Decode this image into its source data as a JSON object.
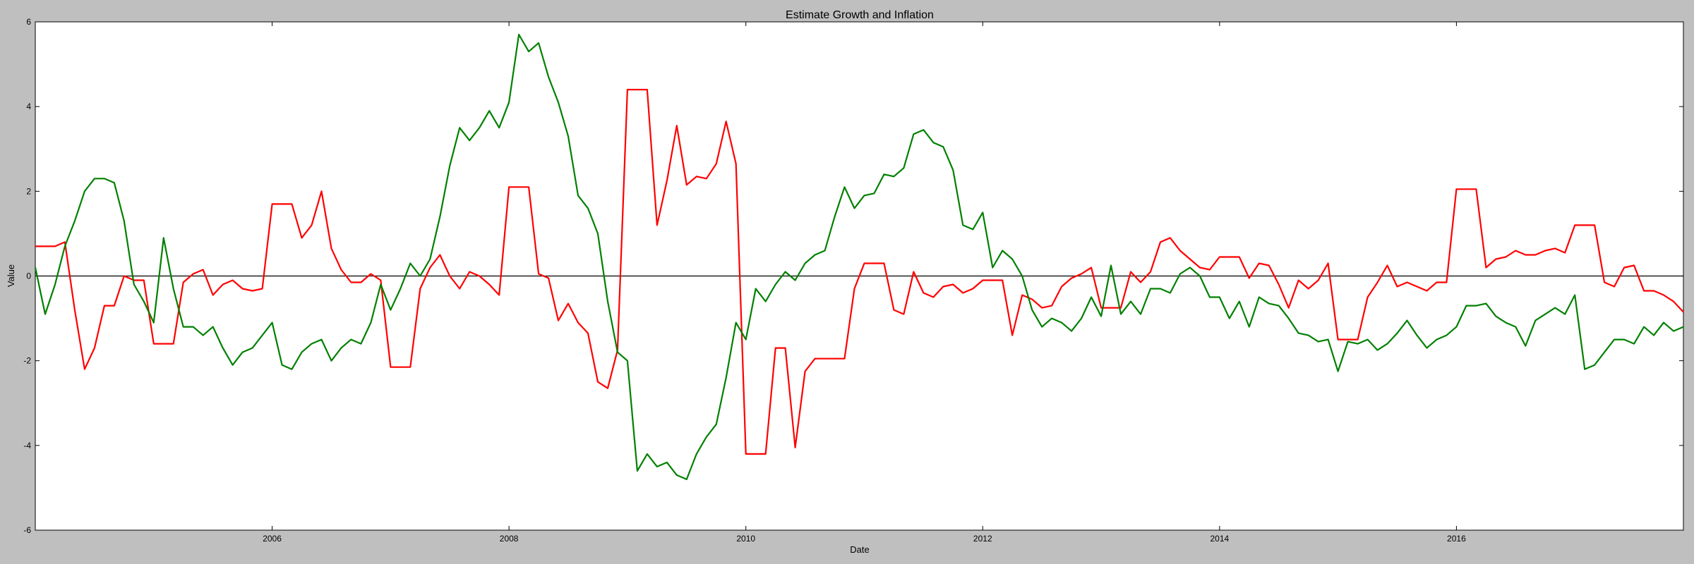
{
  "chart_data": {
    "type": "line",
    "title": "Estimate Growth and Inflation",
    "xlabel": "Date",
    "ylabel": "Value",
    "ylim": [
      -6,
      6
    ],
    "xlim": [
      "2004-01-01",
      "2017-12-01"
    ],
    "x_ticks": [
      "2006",
      "2008",
      "2010",
      "2012",
      "2014",
      "2016"
    ],
    "y_ticks": [
      "-6",
      "-4",
      "-2",
      "0",
      "2",
      "4",
      "6"
    ],
    "grid": false,
    "legend": "none",
    "reference_line": {
      "y": 0,
      "color": "#000000"
    },
    "x": [
      "2004-01",
      "2004-02",
      "2004-03",
      "2004-04",
      "2004-05",
      "2004-06",
      "2004-07",
      "2004-08",
      "2004-09",
      "2004-10",
      "2004-11",
      "2004-12",
      "2005-01",
      "2005-02",
      "2005-03",
      "2005-04",
      "2005-05",
      "2005-06",
      "2005-07",
      "2005-08",
      "2005-09",
      "2005-10",
      "2005-11",
      "2005-12",
      "2006-01",
      "2006-02",
      "2006-03",
      "2006-04",
      "2006-05",
      "2006-06",
      "2006-07",
      "2006-08",
      "2006-09",
      "2006-10",
      "2006-11",
      "2006-12",
      "2007-01",
      "2007-02",
      "2007-03",
      "2007-04",
      "2007-05",
      "2007-06",
      "2007-07",
      "2007-08",
      "2007-09",
      "2007-10",
      "2007-11",
      "2007-12",
      "2008-01",
      "2008-02",
      "2008-03",
      "2008-04",
      "2008-05",
      "2008-06",
      "2008-07",
      "2008-08",
      "2008-09",
      "2008-10",
      "2008-11",
      "2008-12",
      "2009-01",
      "2009-02",
      "2009-03",
      "2009-04",
      "2009-05",
      "2009-06",
      "2009-07",
      "2009-08",
      "2009-09",
      "2009-10",
      "2009-11",
      "2009-12",
      "2010-01",
      "2010-02",
      "2010-03",
      "2010-04",
      "2010-05",
      "2010-06",
      "2010-07",
      "2010-08",
      "2010-09",
      "2010-10",
      "2010-11",
      "2010-12",
      "2011-01",
      "2011-02",
      "2011-03",
      "2011-04",
      "2011-05",
      "2011-06",
      "2011-07",
      "2011-08",
      "2011-09",
      "2011-10",
      "2011-11",
      "2011-12",
      "2012-01",
      "2012-02",
      "2012-03",
      "2012-04",
      "2012-05",
      "2012-06",
      "2012-07",
      "2012-08",
      "2012-09",
      "2012-10",
      "2012-11",
      "2012-12",
      "2013-01",
      "2013-02",
      "2013-03",
      "2013-04",
      "2013-05",
      "2013-06",
      "2013-07",
      "2013-08",
      "2013-09",
      "2013-10",
      "2013-11",
      "2013-12",
      "2014-01",
      "2014-02",
      "2014-03",
      "2014-04",
      "2014-05",
      "2014-06",
      "2014-07",
      "2014-08",
      "2014-09",
      "2014-10",
      "2014-11",
      "2014-12",
      "2015-01",
      "2015-02",
      "2015-03",
      "2015-04",
      "2015-05",
      "2015-06",
      "2015-07",
      "2015-08",
      "2015-09",
      "2015-10",
      "2015-11",
      "2015-12",
      "2016-01",
      "2016-02",
      "2016-03",
      "2016-04",
      "2016-05",
      "2016-06",
      "2016-07",
      "2016-08",
      "2016-09",
      "2016-10",
      "2016-11",
      "2016-12",
      "2017-01",
      "2017-02",
      "2017-03",
      "2017-04",
      "2017-05",
      "2017-06",
      "2017-07",
      "2017-08",
      "2017-09",
      "2017-10",
      "2017-11",
      "2017-12"
    ],
    "series": [
      {
        "color": "#ff0000",
        "values": [
          0.7,
          0.7,
          0.7,
          0.8,
          -0.8,
          -2.2,
          -1.7,
          -0.7,
          -0.7,
          0.0,
          -0.1,
          -0.1,
          -1.6,
          -1.6,
          -1.6,
          -0.15,
          0.05,
          0.15,
          -0.45,
          -0.2,
          -0.1,
          -0.3,
          -0.35,
          -0.3,
          1.7,
          1.7,
          1.7,
          0.9,
          1.2,
          2.0,
          0.65,
          0.15,
          -0.15,
          -0.15,
          0.05,
          -0.1,
          -2.15,
          -2.15,
          -2.15,
          -0.3,
          0.2,
          0.5,
          0.0,
          -0.3,
          0.1,
          0.0,
          -0.2,
          -0.45,
          2.1,
          2.1,
          2.1,
          0.05,
          -0.05,
          -1.05,
          -0.65,
          -1.1,
          -1.35,
          -2.5,
          -2.65,
          -1.75,
          4.4,
          4.4,
          4.4,
          1.2,
          2.25,
          3.55,
          2.15,
          2.35,
          2.3,
          2.65,
          3.65,
          2.65,
          -4.2,
          -4.2,
          -4.2,
          -1.7,
          -1.7,
          -4.05,
          -2.25,
          -1.95,
          -1.95,
          -1.95,
          -1.95,
          -0.3,
          0.3,
          0.3,
          0.3,
          -0.8,
          -0.9,
          0.1,
          -0.4,
          -0.5,
          -0.25,
          -0.2,
          -0.4,
          -0.3,
          -0.1,
          -0.1,
          -0.1,
          -1.4,
          -0.45,
          -0.55,
          -0.75,
          -0.7,
          -0.25,
          -0.05,
          0.05,
          0.2,
          -0.75,
          -0.75,
          -0.75,
          0.1,
          -0.15,
          0.1,
          0.8,
          0.9,
          0.6,
          0.4,
          0.2,
          0.15,
          0.45,
          0.45,
          0.45,
          -0.05,
          0.3,
          0.25,
          -0.2,
          -0.75,
          -0.1,
          -0.3,
          -0.1,
          0.3,
          -1.5,
          -1.5,
          -1.5,
          -0.5,
          -0.15,
          0.25,
          -0.25,
          -0.15,
          -0.25,
          -0.35,
          -0.15,
          -0.15,
          2.05,
          2.05,
          2.05,
          0.2,
          0.4,
          0.45,
          0.6,
          0.5,
          0.5,
          0.6,
          0.65,
          0.55,
          1.2,
          1.2,
          1.2,
          -0.15,
          -0.25,
          0.2,
          0.25,
          -0.35,
          -0.35,
          -0.45,
          -0.6,
          -0.85
        ]
      },
      {
        "color": "#008000",
        "values": [
          0.2,
          -0.9,
          -0.2,
          0.7,
          1.3,
          2.0,
          2.3,
          2.3,
          2.2,
          1.3,
          -0.2,
          -0.6,
          -1.1,
          0.9,
          -0.3,
          -1.2,
          -1.2,
          -1.4,
          -1.2,
          -1.7,
          -2.1,
          -1.8,
          -1.7,
          -1.4,
          -1.1,
          -2.1,
          -2.2,
          -1.8,
          -1.6,
          -1.5,
          -2.0,
          -1.7,
          -1.5,
          -1.6,
          -1.1,
          -0.2,
          -0.8,
          -0.3,
          0.3,
          0.0,
          0.4,
          1.4,
          2.6,
          3.5,
          3.2,
          3.5,
          3.9,
          3.5,
          4.1,
          5.7,
          5.3,
          5.5,
          4.7,
          4.1,
          3.3,
          1.9,
          1.6,
          1.0,
          -0.6,
          -1.8,
          -2.0,
          -4.6,
          -4.2,
          -4.5,
          -4.4,
          -4.7,
          -4.8,
          -4.2,
          -3.8,
          -3.5,
          -2.4,
          -1.1,
          -1.5,
          -0.3,
          -0.6,
          -0.2,
          0.1,
          -0.1,
          0.3,
          0.5,
          0.6,
          1.4,
          2.1,
          1.6,
          1.9,
          1.95,
          2.4,
          2.35,
          2.55,
          3.35,
          3.45,
          3.15,
          3.05,
          2.5,
          1.2,
          1.1,
          1.5,
          0.2,
          0.6,
          0.4,
          0.0,
          -0.8,
          -1.2,
          -1.0,
          -1.1,
          -1.3,
          -1.0,
          -0.5,
          -0.95,
          0.25,
          -0.9,
          -0.6,
          -0.9,
          -0.3,
          -0.3,
          -0.4,
          0.05,
          0.2,
          0.0,
          -0.5,
          -0.5,
          -1.0,
          -0.6,
          -1.2,
          -0.5,
          -0.65,
          -0.7,
          -1.0,
          -1.35,
          -1.4,
          -1.55,
          -1.5,
          -2.25,
          -1.55,
          -1.6,
          -1.5,
          -1.75,
          -1.6,
          -1.35,
          -1.05,
          -1.4,
          -1.7,
          -1.5,
          -1.4,
          -1.2,
          -0.7,
          -0.7,
          -0.65,
          -0.95,
          -1.1,
          -1.2,
          -1.65,
          -1.05,
          -0.9,
          -0.75,
          -0.9,
          -0.45,
          -2.2,
          -2.1,
          -1.8,
          -1.5,
          -1.5,
          -1.6,
          -1.2,
          -1.4,
          -1.1,
          -1.3,
          -1.2
        ]
      }
    ]
  }
}
